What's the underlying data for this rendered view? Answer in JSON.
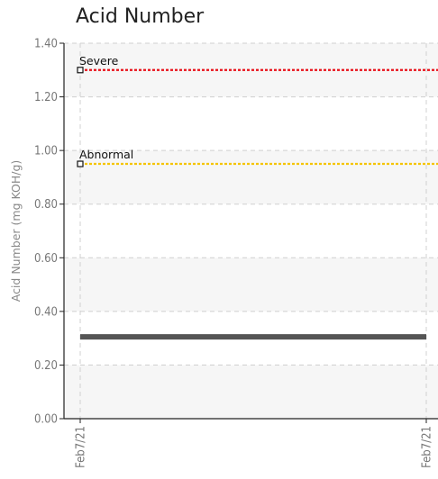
{
  "chart_data": {
    "type": "line",
    "title": "Acid Number",
    "ylabel": "Acid Number (mg KOH/g)",
    "xlabel": "",
    "x_tick_labels": [
      "Feb7/21",
      "Feb7/21"
    ],
    "ylim": [
      0,
      1.4
    ],
    "y_ticks": [
      0.0,
      0.2,
      0.4,
      0.6,
      0.8,
      1.0,
      1.2,
      1.4
    ],
    "y_tick_labels": [
      "0.00",
      "0.20",
      "0.40",
      "0.60",
      "0.80",
      "1.00",
      "1.20",
      "1.40"
    ],
    "grid": true,
    "thresholds": [
      {
        "name": "Severe",
        "value": 1.3,
        "color": "#e8101a"
      },
      {
        "name": "Abnormal",
        "value": 0.95,
        "color": "#f5c400"
      }
    ],
    "series": [
      {
        "x": [
          "Feb7/21",
          "Feb7/21"
        ],
        "values": [
          0.305,
          0.305
        ],
        "color": "#555555"
      }
    ]
  }
}
